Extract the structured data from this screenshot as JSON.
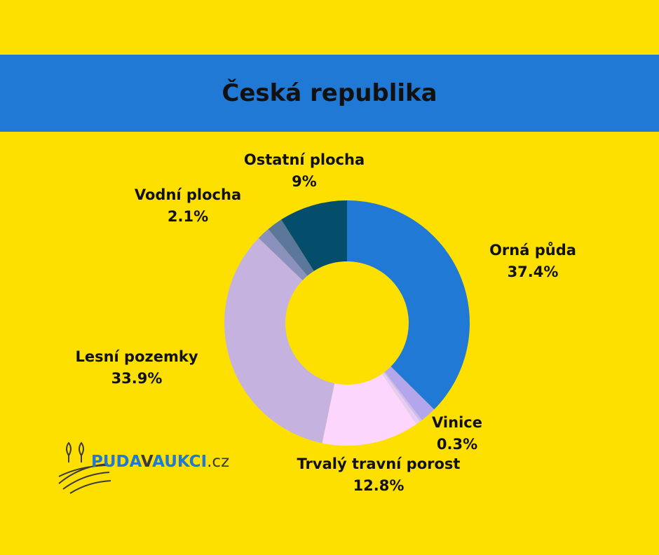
{
  "chart_data": {
    "type": "donut",
    "title": "Česká republika",
    "categories": [
      "Orná půda",
      null,
      "Vinice",
      null,
      "Trvalý travní porost",
      "Lesní pozemky",
      null,
      "Vodní plocha",
      "Ostatní plocha"
    ],
    "values": [
      37.4,
      2.1,
      0.3,
      0.6,
      12.8,
      33.9,
      1.7,
      2.1,
      9
    ],
    "value_labels": [
      "37.4%",
      null,
      "0.3%",
      null,
      "12.8%",
      "33.9%",
      null,
      "2.1%",
      "9%"
    ],
    "colors": [
      "#2079d4",
      "#b3a6ec",
      "#cbbcf2",
      "#e6ccf5",
      "#fdd6fd",
      "#c5b2de",
      "#8b91bd",
      "#5b7799",
      "#054e6b"
    ]
  },
  "logo": {
    "parts": [
      "PUDA",
      "V",
      "AUKCI",
      ".cz"
    ]
  }
}
